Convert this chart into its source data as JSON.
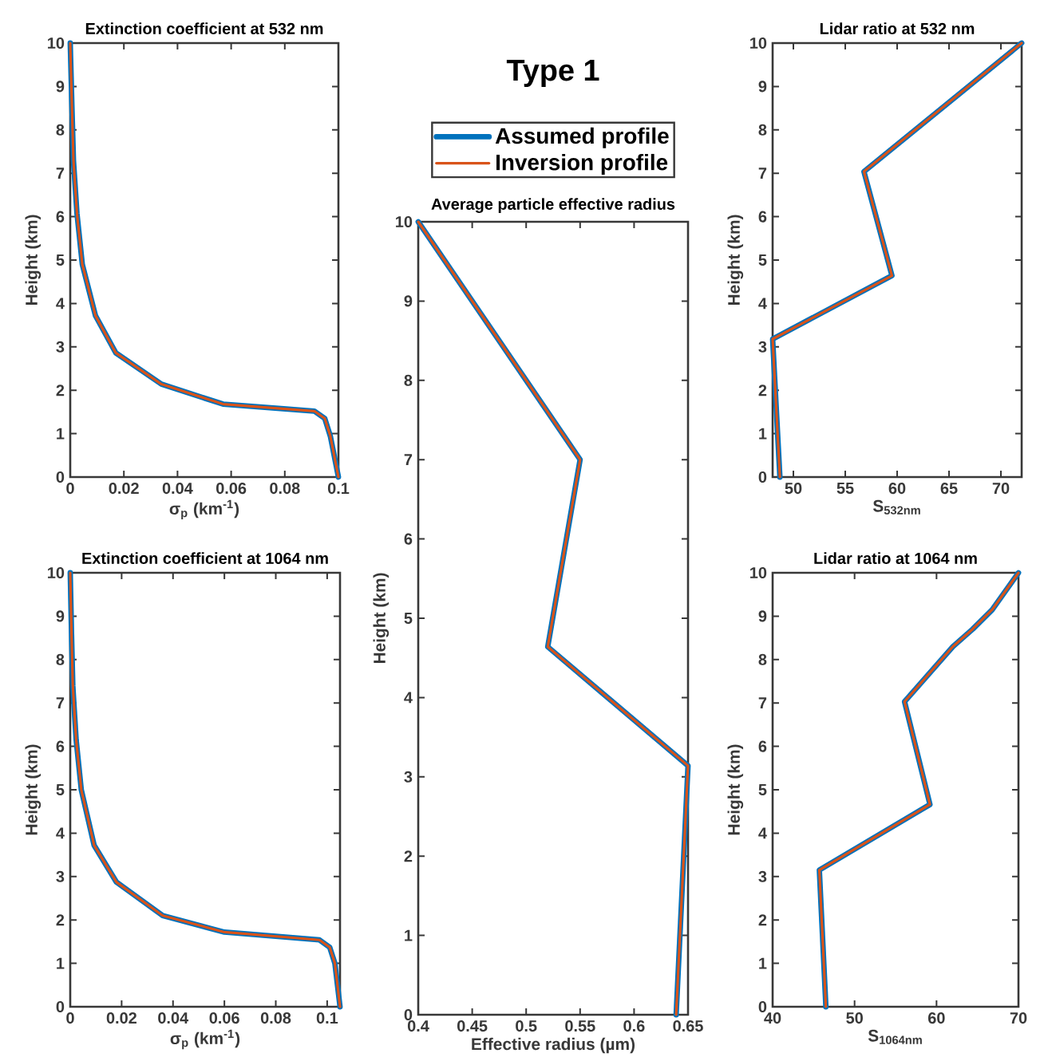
{
  "chart_data": [
    {
      "type": "line",
      "title": "Extinction coefficient at 532 nm",
      "xlabel": "σ$_{p}$ (km$^{-1}$)",
      "ylabel": "Height (km)",
      "xlim": [
        0,
        0.1
      ],
      "ylim": [
        0,
        10
      ],
      "xticks": [
        0,
        0.02,
        0.04,
        0.06,
        0.08,
        0.1
      ],
      "yticks": [
        0,
        1,
        2,
        3,
        4,
        5,
        6,
        7,
        8,
        9,
        10
      ],
      "series": [
        {
          "color": "#0072bd",
          "x": [
            0.1,
            0.097,
            0.0949,
            0.091,
            0.057,
            0.034,
            0.017,
            0.0094,
            0.0045,
            0.0025,
            0.0012,
            0.0006,
            0
          ],
          "values": [
            0,
            0.94,
            1.35,
            1.52,
            1.68,
            2.14,
            2.86,
            3.72,
            4.9,
            6.08,
            7.3,
            8.6,
            10
          ]
        },
        {
          "color": "#d95319",
          "x": [
            0.1,
            0.097,
            0.0949,
            0.091,
            0.057,
            0.034,
            0.017,
            0.0094,
            0.0045,
            0.0025,
            0.0012,
            0.0006,
            0
          ],
          "values": [
            0,
            0.94,
            1.35,
            1.52,
            1.68,
            2.14,
            2.86,
            3.72,
            4.9,
            6.08,
            7.3,
            8.6,
            10
          ]
        }
      ]
    },
    {
      "type": "line",
      "title": "Average particle effective radius",
      "xlabel": "Effective radius (µm)",
      "ylabel": "Height (km)",
      "xlim": [
        0.4,
        0.65
      ],
      "ylim": [
        0,
        10
      ],
      "xticks": [
        0.4,
        0.45,
        0.5,
        0.55,
        0.6,
        0.65
      ],
      "yticks": [
        0,
        1,
        2,
        3,
        4,
        5,
        6,
        7,
        8,
        9,
        10
      ],
      "legend": "top",
      "legend_title": "Type 1",
      "series": [
        {
          "name": "Assumed profile",
          "color": "#0072bd",
          "x": [
            0.639,
            0.65,
            0.52,
            0.55,
            0.4
          ],
          "values": [
            0,
            3.14,
            4.64,
            7.0,
            10
          ]
        },
        {
          "name": "Inversion profile",
          "color": "#d95319",
          "x": [
            0.639,
            0.65,
            0.52,
            0.55,
            0.4
          ],
          "values": [
            0,
            3.14,
            4.64,
            7.0,
            10
          ]
        }
      ]
    },
    {
      "type": "line",
      "title": "Lidar ratio at 532 nm",
      "xlabel": "S$_{532nm}$",
      "ylabel": "Height (km)",
      "xlim": [
        48,
        72
      ],
      "ylim": [
        0,
        10
      ],
      "xticks": [
        50,
        55,
        60,
        65,
        70
      ],
      "yticks": [
        0,
        1,
        2,
        3,
        4,
        5,
        6,
        7,
        8,
        9,
        10
      ],
      "series": [
        {
          "color": "#0072bd",
          "x": [
            48.7,
            48.0,
            59.5,
            56.8,
            72
          ],
          "values": [
            0,
            3.18,
            4.64,
            7.04,
            10
          ]
        },
        {
          "color": "#d95319",
          "x": [
            48.7,
            48.0,
            59.5,
            56.8,
            72
          ],
          "values": [
            0,
            3.18,
            4.64,
            7.04,
            10
          ]
        }
      ]
    },
    {
      "type": "line",
      "title": "Extinction coefficient at 1064 nm",
      "xlabel": "σ$_{p}$ (km$^{-1}$)",
      "ylabel": "Height (km)",
      "xlim": [
        0,
        0.105
      ],
      "ylim": [
        0,
        10
      ],
      "xticks": [
        0,
        0.02,
        0.04,
        0.06,
        0.08,
        0.1
      ],
      "yticks": [
        0,
        1,
        2,
        3,
        4,
        5,
        6,
        7,
        8,
        9,
        10
      ],
      "series": [
        {
          "color": "#0072bd",
          "x": [
            0.105,
            0.103,
            0.101,
            0.097,
            0.06,
            0.036,
            0.018,
            0.0093,
            0.0043,
            0.0023,
            0.001,
            0.0005,
            0
          ],
          "values": [
            0,
            1.0,
            1.37,
            1.54,
            1.72,
            2.1,
            2.87,
            3.72,
            5.0,
            6.15,
            7.4,
            8.6,
            10
          ]
        },
        {
          "color": "#d95319",
          "x": [
            0.105,
            0.103,
            0.101,
            0.097,
            0.06,
            0.036,
            0.018,
            0.0093,
            0.0043,
            0.0023,
            0.001,
            0.0005,
            0
          ],
          "values": [
            0,
            1.0,
            1.37,
            1.54,
            1.72,
            2.1,
            2.87,
            3.72,
            5.0,
            6.15,
            7.4,
            8.6,
            10
          ]
        }
      ]
    },
    {
      "type": "line",
      "title": "Lidar ratio at 1064 nm",
      "xlabel": "S$_{1064nm}$",
      "ylabel": "Height (km)",
      "xlim": [
        40,
        70
      ],
      "ylim": [
        0,
        10
      ],
      "xticks": [
        40,
        50,
        60,
        70
      ],
      "yticks": [
        0,
        1,
        2,
        3,
        4,
        5,
        6,
        7,
        8,
        9,
        10
      ],
      "series": [
        {
          "color": "#0072bd",
          "x": [
            46.5,
            45.7,
            59.2,
            56.1,
            62,
            64.4,
            66.8,
            70
          ],
          "values": [
            0,
            3.15,
            4.66,
            7.03,
            8.3,
            8.7,
            9.15,
            10
          ]
        },
        {
          "color": "#d95319",
          "x": [
            46.5,
            45.7,
            59.2,
            56.1,
            62,
            64.4,
            66.8,
            70
          ],
          "values": [
            0,
            3.15,
            4.66,
            7.03,
            8.3,
            8.7,
            9.15,
            10
          ]
        }
      ]
    }
  ]
}
